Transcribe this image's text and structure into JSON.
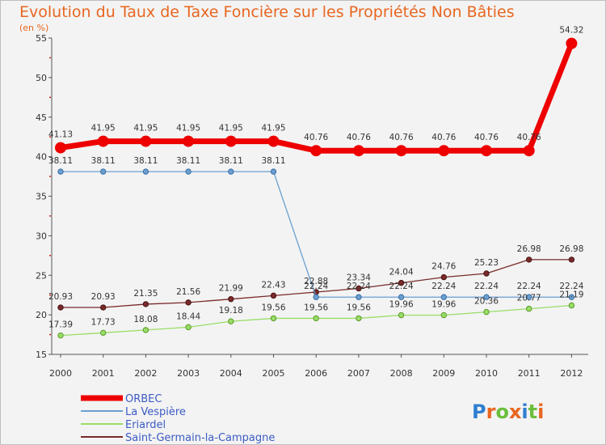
{
  "title": "Evolution du Taux de Taxe Foncière sur les Propriétés Non Bâties",
  "subtitle": "(en %)",
  "logo": {
    "text": "Proxiti",
    "letters": [
      {
        "char": "P",
        "color": "#2f7fd1"
      },
      {
        "char": "r",
        "color": "#e8661f"
      },
      {
        "char": "o",
        "color": "#6abf3a"
      },
      {
        "char": "x",
        "color": "#e8661f"
      },
      {
        "char": "i",
        "color": "#2f7fd1"
      },
      {
        "char": "t",
        "color": "#6abf3a"
      },
      {
        "char": "i",
        "color": "#e8661f"
      }
    ]
  },
  "chart_data": {
    "type": "line",
    "x": [
      "2000",
      "2001",
      "2002",
      "2003",
      "2004",
      "2005",
      "2006",
      "2007",
      "2008",
      "2009",
      "2010",
      "2011",
      "2012"
    ],
    "ylim": [
      15,
      55
    ],
    "yticks": [
      15,
      20,
      25,
      30,
      35,
      40,
      45,
      50,
      55
    ],
    "grid": false,
    "legend": "bottom-left",
    "series": [
      {
        "name": "ORBEC",
        "color": "#ee0000",
        "values": [
          41.13,
          41.95,
          41.95,
          41.95,
          41.95,
          41.95,
          40.76,
          40.76,
          40.76,
          40.76,
          40.76,
          40.76,
          54.32
        ],
        "labels": [
          "41.13",
          "41.95",
          "41.95",
          "41.95",
          "41.95",
          "41.95",
          "40.76",
          "40.76",
          "40.76",
          "40.76",
          "40.76",
          "40.76",
          "54.32"
        ]
      },
      {
        "name": "La Vespière",
        "color": "#6a9fd0",
        "values": [
          38.11,
          38.11,
          38.11,
          38.11,
          38.11,
          38.11,
          22.24,
          22.24,
          22.24,
          22.24,
          22.24,
          22.24,
          22.24
        ],
        "labels": [
          "38.11",
          "38.11",
          "38.11",
          "38.11",
          "38.11",
          "38.11",
          "22.24",
          "22.24",
          "22.24",
          "22.24",
          "22.24",
          "22.24",
          "22.24"
        ]
      },
      {
        "name": "Eriardel",
        "color": "#99dd66",
        "values": [
          17.39,
          17.73,
          18.08,
          18.44,
          19.18,
          19.56,
          19.56,
          19.56,
          19.96,
          19.96,
          20.36,
          20.77,
          21.19
        ],
        "labels": [
          "17.39",
          "17.73",
          "18.08",
          "18.44",
          "19.18",
          "19.56",
          "19.56",
          "19.56",
          "19.96",
          "19.96",
          "20.36",
          "20.77",
          "21.19"
        ]
      },
      {
        "name": "Saint-Germain-la-Campagne",
        "color": "#7a2a2a",
        "values": [
          20.93,
          20.93,
          21.35,
          21.56,
          21.99,
          22.43,
          22.88,
          23.34,
          24.04,
          24.76,
          25.23,
          26.98,
          26.98
        ],
        "labels": [
          "20.93",
          "20.93",
          "21.35",
          "21.56",
          "21.99",
          "22.43",
          "22.88",
          "23.34",
          "24.04",
          "24.76",
          "25.23",
          "26.98",
          "26.98"
        ]
      }
    ]
  }
}
